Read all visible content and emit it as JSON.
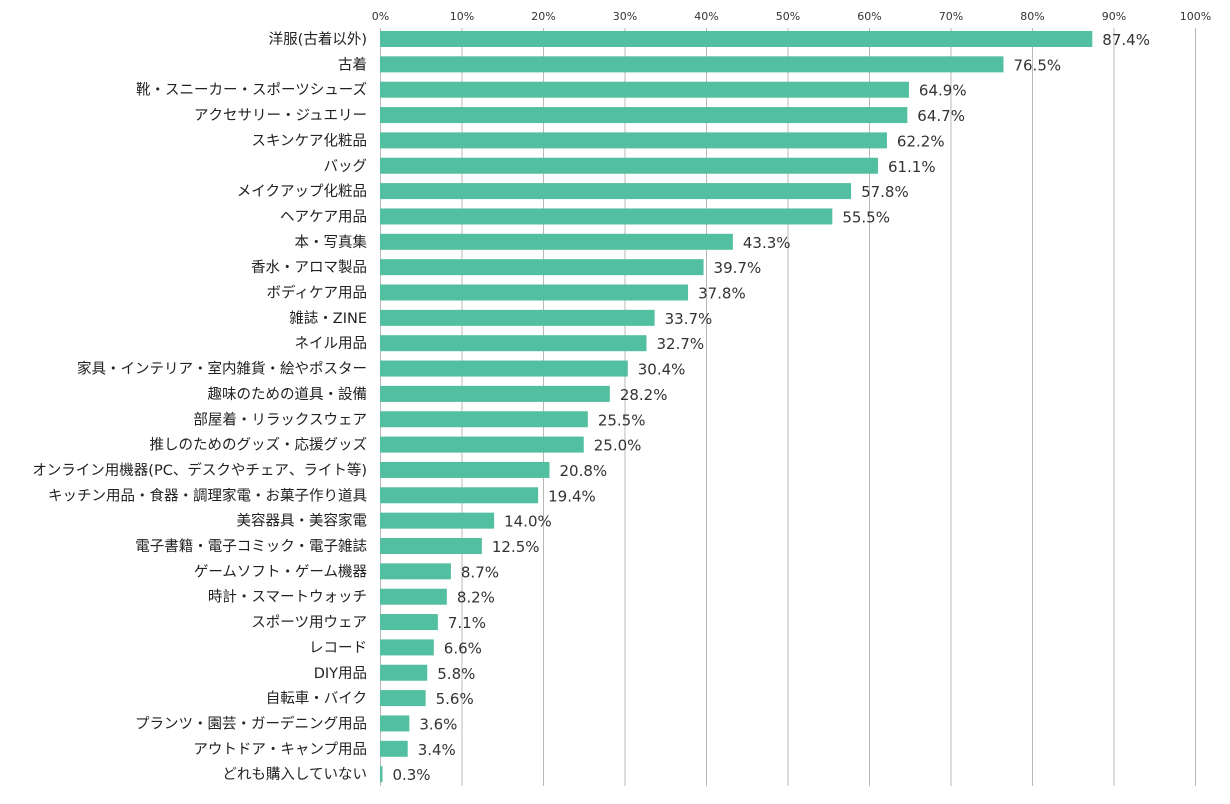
{
  "chart_data": {
    "type": "bar",
    "orientation": "horizontal",
    "title": "",
    "xlabel": "",
    "ylabel": "",
    "xlim": [
      0,
      100
    ],
    "grid": true,
    "bar_color": "#52bfa0",
    "ticks": [
      "0%",
      "10%",
      "20%",
      "30%",
      "40%",
      "50%",
      "60%",
      "70%",
      "80%",
      "90%",
      "100%"
    ],
    "tick_values": [
      0,
      10,
      20,
      30,
      40,
      50,
      60,
      70,
      80,
      90,
      100
    ],
    "categories": [
      "洋服(古着以外)",
      "古着",
      "靴・スニーカー・スポーツシューズ",
      "アクセサリー・ジュエリー",
      "スキンケア化粧品",
      "バッグ",
      "メイクアップ化粧品",
      "ヘアケア用品",
      "本・写真集",
      "香水・アロマ製品",
      "ボディケア用品",
      "雑誌・ZINE",
      "ネイル用品",
      "家具・インテリア・室内雑貨・絵やポスター",
      "趣味のための道具・設備",
      "部屋着・リラックスウェア",
      "推しのためのグッズ・応援グッズ",
      "オンライン用機器(PC、デスクやチェア、ライト等)",
      "キッチン用品・食器・調理家電・お菓子作り道具",
      "美容器具・美容家電",
      "電子書籍・電子コミック・電子雑誌",
      "ゲームソフト・ゲーム機器",
      "時計・スマートウォッチ",
      "スポーツ用ウェア",
      "レコード",
      "DIY用品",
      "自転車・バイク",
      "プランツ・園芸・ガーデニング用品",
      "アウトドア・キャンプ用品",
      "どれも購入していない"
    ],
    "values": [
      87.4,
      76.5,
      64.9,
      64.7,
      62.2,
      61.1,
      57.8,
      55.5,
      43.3,
      39.7,
      37.8,
      33.7,
      32.7,
      30.4,
      28.2,
      25.5,
      25.0,
      20.8,
      19.4,
      14.0,
      12.5,
      8.7,
      8.2,
      7.1,
      6.6,
      5.8,
      5.6,
      3.6,
      3.4,
      0.3
    ],
    "value_labels": [
      "87.4%",
      "76.5%",
      "64.9%",
      "64.7%",
      "62.2%",
      "61.1%",
      "57.8%",
      "55.5%",
      "43.3%",
      "39.7%",
      "37.8%",
      "33.7%",
      "32.7%",
      "30.4%",
      "28.2%",
      "25.5%",
      "25.0%",
      "20.8%",
      "19.4%",
      "14.0%",
      "12.5%",
      "8.7%",
      "8.2%",
      "7.1%",
      "6.6%",
      "5.8%",
      "5.6%",
      "3.6%",
      "3.4%",
      "0.3%"
    ]
  }
}
